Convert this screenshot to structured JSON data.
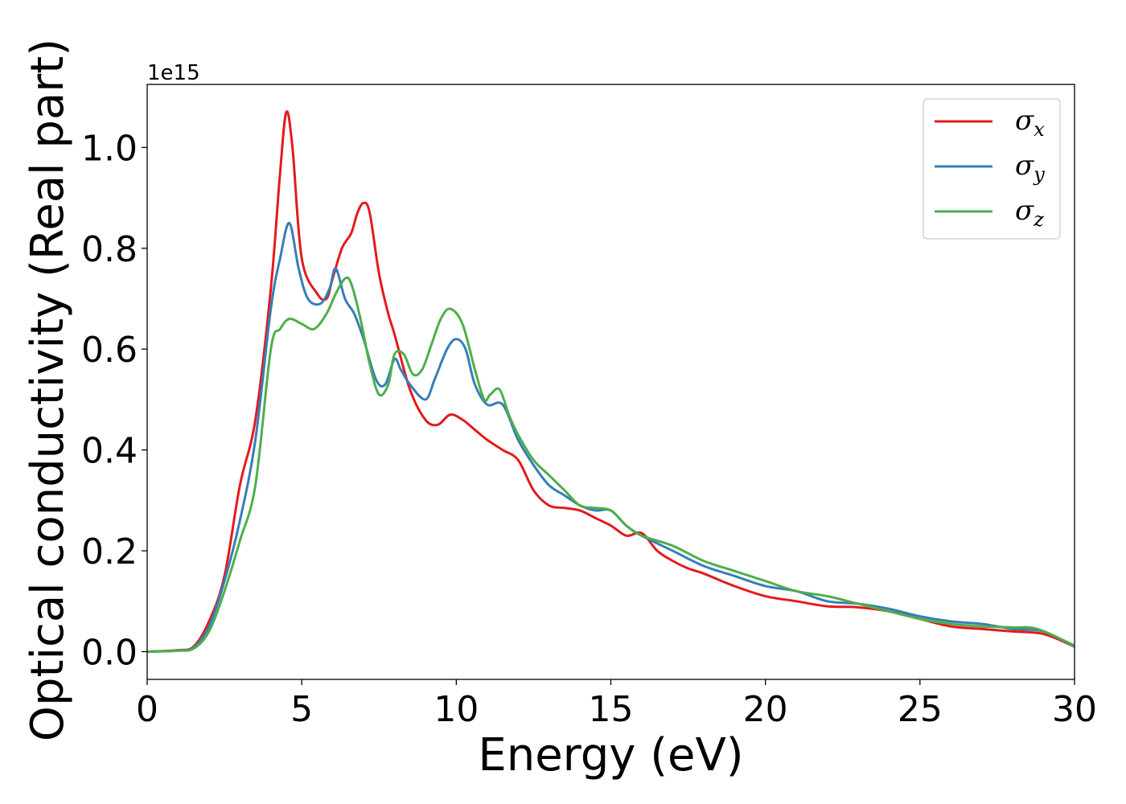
{
  "chart_data": {
    "type": "line",
    "xlabel": "Energy (eV)",
    "ylabel": "Optical conductivity (Real part)",
    "y_offset_label": "1e15",
    "xlim": [
      0,
      30
    ],
    "ylim": [
      -0.055,
      1.125
    ],
    "x_ticks": [
      0,
      5,
      10,
      15,
      20,
      25,
      30
    ],
    "y_ticks": [
      0.0,
      0.2,
      0.4,
      0.6,
      0.8,
      1.0
    ],
    "x_tick_labels": [
      "0",
      "5",
      "10",
      "15",
      "20",
      "25",
      "30"
    ],
    "y_tick_labels": [
      "0.0",
      "0.2",
      "0.4",
      "0.6",
      "0.8",
      "1.0"
    ],
    "grid": false,
    "legend_position": "top-right",
    "series": [
      {
        "name": "σx",
        "symbol": "σ",
        "subscript": "x",
        "color": "#e41a1c",
        "x": [
          0,
          1.0,
          1.5,
          2.0,
          2.5,
          3.0,
          3.5,
          4.0,
          4.3,
          4.5,
          4.7,
          5.0,
          5.5,
          5.8,
          6.0,
          6.3,
          6.6,
          6.8,
          7.0,
          7.2,
          7.5,
          7.8,
          8.0,
          8.5,
          9.0,
          9.4,
          9.8,
          10.2,
          10.6,
          11.0,
          11.5,
          12.0,
          12.5,
          13.0,
          13.5,
          14.0,
          14.5,
          15.0,
          15.5,
          16.0,
          16.5,
          17.0,
          17.5,
          18.0,
          19.0,
          20.0,
          21.0,
          22.0,
          23.0,
          24.0,
          25.0,
          26.0,
          27.0,
          28.0,
          29.0,
          30.0
        ],
        "y": [
          0.0,
          0.003,
          0.01,
          0.06,
          0.15,
          0.33,
          0.46,
          0.72,
          0.95,
          1.07,
          1.0,
          0.78,
          0.71,
          0.7,
          0.74,
          0.8,
          0.83,
          0.87,
          0.89,
          0.87,
          0.75,
          0.67,
          0.63,
          0.52,
          0.46,
          0.45,
          0.47,
          0.46,
          0.44,
          0.42,
          0.4,
          0.38,
          0.32,
          0.29,
          0.285,
          0.28,
          0.265,
          0.25,
          0.23,
          0.235,
          0.2,
          0.18,
          0.165,
          0.155,
          0.13,
          0.11,
          0.1,
          0.09,
          0.088,
          0.08,
          0.065,
          0.05,
          0.045,
          0.04,
          0.035,
          0.01
        ]
      },
      {
        "name": "σy",
        "symbol": "σ",
        "subscript": "y",
        "color": "#377eb8",
        "x": [
          0,
          1.0,
          1.5,
          2.0,
          2.5,
          3.0,
          3.5,
          4.0,
          4.3,
          4.6,
          4.9,
          5.2,
          5.6,
          5.9,
          6.1,
          6.4,
          6.7,
          7.0,
          7.4,
          7.7,
          8.0,
          8.2,
          8.5,
          9.0,
          9.3,
          9.7,
          10.0,
          10.3,
          10.6,
          11.0,
          11.5,
          12.0,
          12.5,
          13.0,
          13.5,
          14.0,
          14.5,
          15.0,
          15.5,
          16.0,
          17.0,
          18.0,
          19.0,
          20.0,
          21.0,
          22.0,
          23.0,
          24.0,
          25.0,
          26.0,
          27.0,
          28.0,
          29.0,
          30.0
        ],
        "y": [
          0.0,
          0.002,
          0.008,
          0.05,
          0.14,
          0.26,
          0.42,
          0.68,
          0.78,
          0.85,
          0.76,
          0.7,
          0.69,
          0.72,
          0.76,
          0.7,
          0.67,
          0.62,
          0.54,
          0.53,
          0.58,
          0.56,
          0.53,
          0.5,
          0.54,
          0.6,
          0.62,
          0.6,
          0.53,
          0.49,
          0.49,
          0.42,
          0.37,
          0.33,
          0.31,
          0.29,
          0.28,
          0.28,
          0.25,
          0.23,
          0.2,
          0.17,
          0.15,
          0.13,
          0.12,
          0.1,
          0.095,
          0.085,
          0.07,
          0.06,
          0.055,
          0.045,
          0.04,
          0.01
        ]
      },
      {
        "name": "σz",
        "symbol": "σ",
        "subscript": "z",
        "color": "#4daf4a",
        "x": [
          0,
          1.0,
          1.5,
          2.0,
          2.5,
          3.0,
          3.5,
          4.0,
          4.3,
          4.6,
          5.0,
          5.4,
          5.8,
          6.1,
          6.4,
          6.6,
          6.9,
          7.2,
          7.5,
          7.8,
          8.0,
          8.3,
          8.6,
          8.9,
          9.2,
          9.5,
          9.8,
          10.2,
          10.6,
          10.9,
          11.1,
          11.4,
          11.7,
          12.0,
          12.5,
          13.0,
          13.5,
          14.0,
          14.5,
          15.0,
          15.5,
          16.0,
          17.0,
          18.0,
          19.0,
          20.0,
          21.0,
          22.0,
          23.0,
          24.0,
          25.0,
          26.0,
          27.0,
          28.0,
          28.8,
          30.0
        ],
        "y": [
          0.0,
          0.002,
          0.006,
          0.04,
          0.12,
          0.22,
          0.33,
          0.6,
          0.64,
          0.66,
          0.65,
          0.64,
          0.67,
          0.71,
          0.74,
          0.73,
          0.66,
          0.57,
          0.51,
          0.53,
          0.59,
          0.59,
          0.55,
          0.56,
          0.61,
          0.66,
          0.68,
          0.65,
          0.56,
          0.5,
          0.51,
          0.52,
          0.47,
          0.43,
          0.38,
          0.35,
          0.32,
          0.29,
          0.285,
          0.28,
          0.25,
          0.23,
          0.21,
          0.18,
          0.16,
          0.14,
          0.12,
          0.11,
          0.095,
          0.08,
          0.065,
          0.055,
          0.05,
          0.048,
          0.045,
          0.012
        ]
      }
    ]
  }
}
